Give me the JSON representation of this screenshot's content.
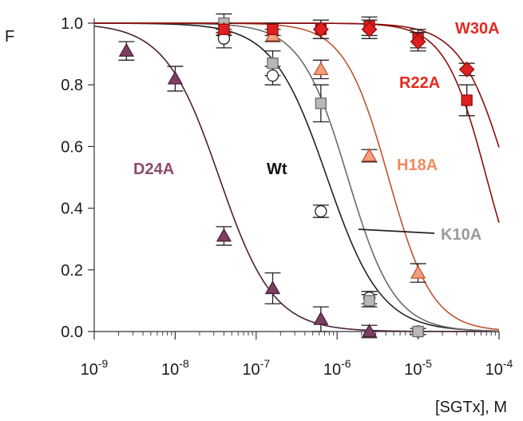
{
  "chart_data": {
    "type": "scatter",
    "xlabel": "[SGTx], M",
    "ylabel": "F",
    "xscale": "log",
    "xlim": [
      1e-09,
      0.0001
    ],
    "ylim": [
      0,
      1.0
    ],
    "x_ticks": [
      {
        "value": 1e-09,
        "base": "10",
        "exp": "-9"
      },
      {
        "value": 1e-08,
        "base": "10",
        "exp": "-8"
      },
      {
        "value": 1e-07,
        "base": "10",
        "exp": "-7"
      },
      {
        "value": 1e-06,
        "base": "10",
        "exp": "-6"
      },
      {
        "value": 1e-05,
        "base": "10",
        "exp": "-5"
      },
      {
        "value": 0.0001,
        "base": "10",
        "exp": "-4"
      }
    ],
    "y_ticks": [
      {
        "value": 0.0,
        "label": "0.0"
      },
      {
        "value": 0.2,
        "label": "0.2"
      },
      {
        "value": 0.4,
        "label": "0.4"
      },
      {
        "value": 0.6,
        "label": "0.6"
      },
      {
        "value": 0.8,
        "label": "0.8"
      },
      {
        "value": 1.0,
        "label": "1.0"
      }
    ],
    "grid": false,
    "series": [
      {
        "name": "D24A",
        "marker": "triangle",
        "color": "#7b3f63",
        "stroke": "#4a2038",
        "label_color": "#8c4a6e",
        "fit_ic50": 3.5e-08,
        "fit_hill": 1.3,
        "points": [
          {
            "x": 2.5e-09,
            "y": 0.91,
            "err": 0.03
          },
          {
            "x": 1e-08,
            "y": 0.82,
            "err": 0.04
          },
          {
            "x": 4e-08,
            "y": 0.31,
            "err": 0.03
          },
          {
            "x": 1.6e-07,
            "y": 0.14,
            "err": 0.05
          },
          {
            "x": 6.3e-07,
            "y": 0.04,
            "err": 0.04
          },
          {
            "x": 2.5e-06,
            "y": 0.0,
            "err": 0.02
          }
        ]
      },
      {
        "name": "Wt",
        "marker": "circle",
        "color": "#ffffff",
        "stroke": "#222222",
        "label_color": "#111111",
        "fit_ic50": 7.5e-07,
        "fit_hill": 1.3,
        "points": [
          {
            "x": 4e-08,
            "y": 0.95,
            "err": 0.03
          },
          {
            "x": 1.6e-07,
            "y": 0.83,
            "err": 0.03
          },
          {
            "x": 6.3e-07,
            "y": 0.39,
            "err": 0.02
          },
          {
            "x": 2.5e-06,
            "y": 0.11,
            "err": 0.02
          },
          {
            "x": 1e-05,
            "y": 0.0,
            "err": 0.01
          }
        ]
      },
      {
        "name": "K10A",
        "marker": "square",
        "color": "#b8b8b8",
        "stroke": "#6a6a6a",
        "label_color": "#9a9a9a",
        "fit_ic50": 1.35e-06,
        "fit_hill": 1.5,
        "points": [
          {
            "x": 4e-08,
            "y": 1.0,
            "err": 0.03
          },
          {
            "x": 1.6e-07,
            "y": 0.87,
            "err": 0.04
          },
          {
            "x": 6.3e-07,
            "y": 0.74,
            "err": 0.06
          },
          {
            "x": 2.5e-06,
            "y": 0.1,
            "err": 0.02
          },
          {
            "x": 1e-05,
            "y": 0.0,
            "err": 0.01
          }
        ]
      },
      {
        "name": "H18A",
        "marker": "triangle",
        "color": "#f4a07c",
        "stroke": "#c0532f",
        "label_color": "#f08a60",
        "fit_ic50": 4.3e-06,
        "fit_hill": 1.6,
        "points": [
          {
            "x": 4e-08,
            "y": 0.98,
            "err": 0.02
          },
          {
            "x": 1.6e-07,
            "y": 0.96,
            "err": 0.02
          },
          {
            "x": 6.3e-07,
            "y": 0.85,
            "err": 0.03
          },
          {
            "x": 2.5e-06,
            "y": 0.57,
            "err": 0.02
          },
          {
            "x": 1e-05,
            "y": 0.19,
            "err": 0.03
          }
        ]
      },
      {
        "name": "R22A",
        "marker": "square",
        "color": "#e02020",
        "stroke": "#8a0f0f",
        "label_color": "#e22a1e",
        "fit_ic50": 7e-05,
        "fit_hill": 1.7,
        "points": [
          {
            "x": 4e-08,
            "y": 0.98,
            "err": 0.02
          },
          {
            "x": 1.6e-07,
            "y": 0.98,
            "err": 0.02
          },
          {
            "x": 6.3e-07,
            "y": 0.98,
            "err": 0.03
          },
          {
            "x": 2.5e-06,
            "y": 0.99,
            "err": 0.03
          },
          {
            "x": 1e-05,
            "y": 0.95,
            "err": 0.03
          },
          {
            "x": 4e-05,
            "y": 0.75,
            "err": 0.05
          }
        ]
      },
      {
        "name": "W30A",
        "marker": "diamond",
        "color": "#e02020",
        "stroke": "#8a0f0f",
        "label_color": "#e22a1e",
        "fit_ic50": 0.00013,
        "fit_hill": 1.5,
        "points": [
          {
            "x": 6.3e-07,
            "y": 0.98,
            "err": 0.03
          },
          {
            "x": 2.5e-06,
            "y": 0.98,
            "err": 0.03
          },
          {
            "x": 1e-05,
            "y": 0.94,
            "err": 0.03
          },
          {
            "x": 4e-05,
            "y": 0.85,
            "err": 0.02
          }
        ]
      }
    ]
  }
}
